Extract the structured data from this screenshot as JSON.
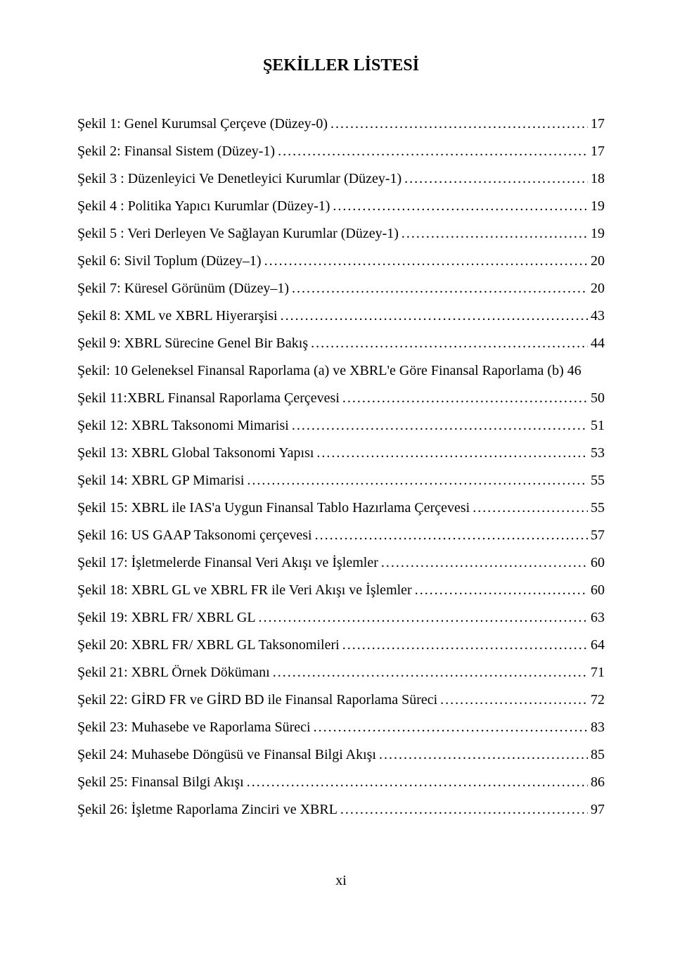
{
  "title": "ŞEKİLLER LİSTESİ",
  "page_number": "xi",
  "entries": [
    {
      "label": "Şekil 1: Genel Kurumsal Çerçeve (Düzey-0)",
      "page": "17"
    },
    {
      "label": "Şekil 2: Finansal Sistem (Düzey-1)",
      "page": "17"
    },
    {
      "label": "Şekil 3 : Düzenleyici Ve Denetleyici Kurumlar (Düzey-1)",
      "page": "18"
    },
    {
      "label": "Şekil 4 : Politika Yapıcı Kurumlar (Düzey-1)",
      "page": "19"
    },
    {
      "label": "Şekil 5 : Veri Derleyen Ve Sağlayan Kurumlar (Düzey-1)",
      "page": "19"
    },
    {
      "label": "Şekil 6: Sivil Toplum (Düzey–1)",
      "page": "20"
    },
    {
      "label": "Şekil 7: Küresel Görünüm (Düzey–1)",
      "page": "20"
    },
    {
      "label": "Şekil 8: XML ve XBRL Hiyerarşisi",
      "page": "43"
    },
    {
      "label": "Şekil 9: XBRL Sürecine Genel Bir Bakış",
      "page": "44"
    },
    {
      "label": "Şekil: 10 Geleneksel Finansal Raporlama (a) ve XBRL'e Göre Finansal Raporlama (b)",
      "page": "46"
    },
    {
      "label": "Şekil 11:XBRL Finansal Raporlama Çerçevesi",
      "page": "50"
    },
    {
      "label": "Şekil 12: XBRL Taksonomi Mimarisi",
      "page": "51"
    },
    {
      "label": "Şekil 13: XBRL Global Taksonomi Yapısı",
      "page": "53"
    },
    {
      "label": "Şekil 14: XBRL GP Mimarisi",
      "page": "55"
    },
    {
      "label": "Şekil 15: XBRL ile IAS'a Uygun Finansal Tablo Hazırlama Çerçevesi",
      "page": "55"
    },
    {
      "label": "Şekil 16: US GAAP Taksonomi çerçevesi",
      "page": "57"
    },
    {
      "label": "Şekil 17: İşletmelerde Finansal Veri Akışı ve İşlemler",
      "page": "60"
    },
    {
      "label": "Şekil 18: XBRL GL ve XBRL FR ile Veri Akışı ve İşlemler",
      "page": "60"
    },
    {
      "label": "Şekil 19: XBRL FR/ XBRL GL",
      "page": "63"
    },
    {
      "label": "Şekil 20: XBRL FR/ XBRL GL Taksonomileri",
      "page": "64"
    },
    {
      "label": "Şekil 21: XBRL Örnek Dökümanı",
      "page": "71"
    },
    {
      "label": "Şekil 22: GİRD FR ve GİRD BD ile Finansal Raporlama Süreci",
      "page": "72"
    },
    {
      "label": "Şekil 23: Muhasebe ve Raporlama Süreci",
      "page": "83"
    },
    {
      "label": "Şekil 24: Muhasebe Döngüsü ve Finansal Bilgi Akışı",
      "page": "85"
    },
    {
      "label": "Şekil 25: Finansal Bilgi Akışı",
      "page": "86"
    },
    {
      "label": "Şekil 26: İşletme Raporlama Zinciri ve XBRL",
      "page": "97"
    }
  ]
}
